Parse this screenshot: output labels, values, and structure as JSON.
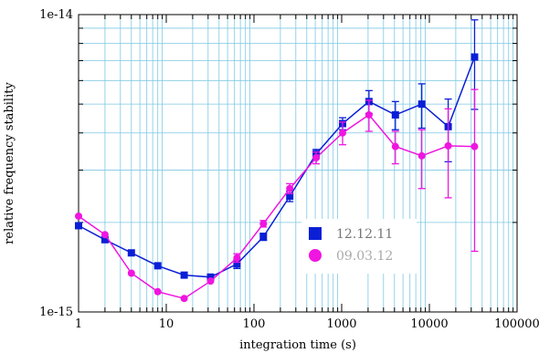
{
  "chart_data": {
    "type": "scatter",
    "xlabel": "integration time (s)",
    "ylabel": "relative frequency stability",
    "xscale": "log",
    "yscale": "log",
    "xlim": [
      1,
      100000
    ],
    "ylim": [
      1e-15,
      1e-14
    ],
    "x_ticks": [
      "1",
      "10",
      "100",
      "1000",
      "10000",
      "100000"
    ],
    "y_ticks": [
      "1e-15",
      "1e-14"
    ],
    "grid": true,
    "grid_color": "#7ec8e3",
    "legend_position": "lower-right",
    "series": [
      {
        "name": "12.12.11",
        "color": "#0a1fd6",
        "marker": "square",
        "x": [
          1,
          2,
          4,
          8,
          16,
          32,
          64,
          128,
          256,
          512,
          1024,
          2048,
          4096,
          8192,
          16384,
          32768
        ],
        "y": [
          1.95e-15,
          1.75e-15,
          1.58e-15,
          1.43e-15,
          1.33e-15,
          1.31e-15,
          1.45e-15,
          1.79e-15,
          2.45e-15,
          3.4e-15,
          4.3e-15,
          5.1e-15,
          4.6e-15,
          5e-15,
          4.2e-15,
          7.2e-15
        ],
        "err": [
          0,
          0,
          0,
          0,
          0,
          0,
          5e-17,
          5e-17,
          1e-16,
          1.2e-16,
          2e-16,
          4.5e-16,
          5e-16,
          8.5e-16,
          1e-15,
          2.4e-15
        ]
      },
      {
        "name": "09.03.12",
        "color": "#f015e0",
        "marker": "circle",
        "x": [
          1,
          2,
          4,
          8,
          16,
          32,
          64,
          128,
          256,
          512,
          1024,
          2048,
          4096,
          8192,
          16384,
          32768
        ],
        "y": [
          2.1e-15,
          1.82e-15,
          1.35e-15,
          1.17e-15,
          1.11e-15,
          1.27e-15,
          1.52e-15,
          1.98e-15,
          2.6e-15,
          3.3e-15,
          4e-15,
          4.6e-15,
          3.6e-15,
          3.35e-15,
          3.62e-15,
          3.6e-15
        ],
        "err": [
          0,
          0,
          0,
          0,
          0,
          0,
          5e-17,
          5e-17,
          1e-16,
          1.5e-16,
          3.5e-16,
          5.5e-16,
          4.5e-16,
          7.5e-16,
          1.2e-15,
          2e-15
        ]
      }
    ]
  }
}
